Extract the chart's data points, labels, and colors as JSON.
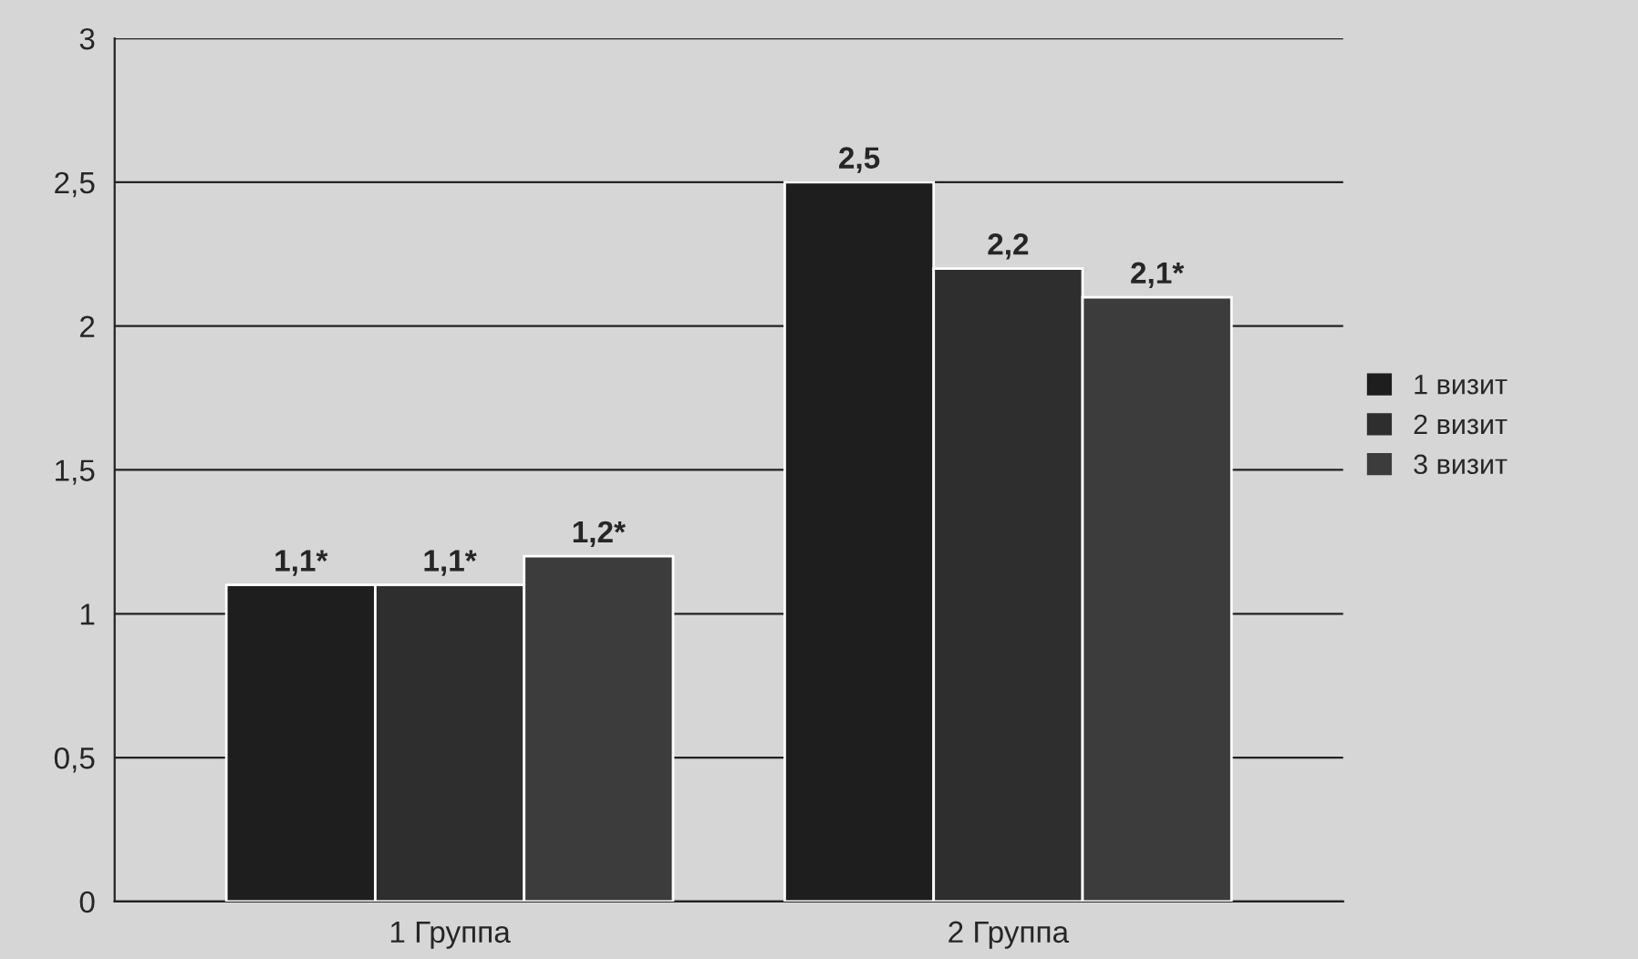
{
  "chart_data": {
    "type": "bar",
    "categories": [
      "1 Группа",
      "2 Группа"
    ],
    "series": [
      {
        "name": "1 визит",
        "color": "#1e1e1e",
        "values": [
          1.1,
          2.5
        ],
        "value_labels": [
          "1,1*",
          "2,5"
        ]
      },
      {
        "name": "2 визит",
        "color": "#2e2e2e",
        "values": [
          1.1,
          2.2
        ],
        "value_labels": [
          "1,1*",
          "2,2"
        ]
      },
      {
        "name": "3 визит",
        "color": "#3c3c3c",
        "values": [
          1.2,
          2.1
        ],
        "value_labels": [
          "1,2*",
          "2,1*"
        ]
      }
    ],
    "ylim": [
      0,
      3
    ],
    "yticks": [
      0,
      {
        "value": 0.5,
        "label": "0,5"
      },
      1,
      {
        "value": 1.5,
        "label": "1,5"
      },
      2,
      {
        "value": 2.5,
        "label": "2,5"
      },
      3
    ],
    "grid": "y",
    "legend": "right"
  }
}
